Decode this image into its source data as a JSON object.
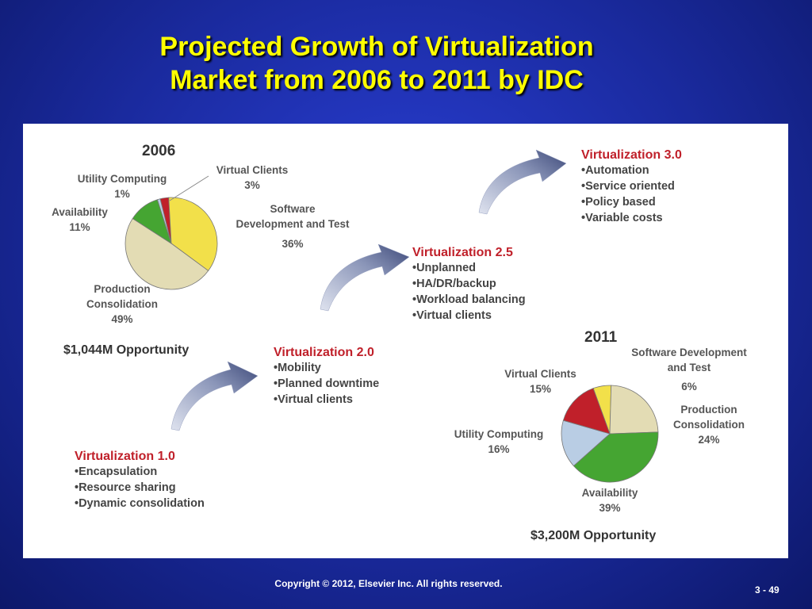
{
  "title_line1": "Projected Growth of Virtualization",
  "title_line2": "Market from 2006 to 2011 by IDC",
  "footer": "Copyright © 2012, Elsevier Inc. All rights reserved.",
  "page_number": "3 - 49",
  "chart_data": [
    {
      "type": "pie",
      "title": "2006",
      "subtitle": "$1,044M Opportunity",
      "slices": [
        {
          "label": "Virtual Clients",
          "value": 3,
          "value_label": "3%",
          "color": "#c0202a"
        },
        {
          "label": "Software Development and Test",
          "value": 36,
          "value_label": "36%",
          "color": "#f2e04a"
        },
        {
          "label": "Production Consolidation",
          "value": 49,
          "value_label": "49%",
          "color": "#e3dcb4"
        },
        {
          "label": "Availability",
          "value": 11,
          "value_label": "11%",
          "color": "#45a532"
        },
        {
          "label": "Utility Computing",
          "value": 1,
          "value_label": "1%",
          "color": "#b9cde4"
        }
      ]
    },
    {
      "type": "pie",
      "title": "2011",
      "subtitle": "$3,200M Opportunity",
      "slices": [
        {
          "label": "Software Development and Test",
          "value": 6,
          "value_label": "6%",
          "color": "#f2e04a"
        },
        {
          "label": "Production Consolidation",
          "value": 24,
          "value_label": "24%",
          "color": "#e3dcb4"
        },
        {
          "label": "Availability",
          "value": 39,
          "value_label": "39%",
          "color": "#45a532"
        },
        {
          "label": "Utility Computing",
          "value": 16,
          "value_label": "16%",
          "color": "#b9cde4"
        },
        {
          "label": "Virtual Clients",
          "value": 15,
          "value_label": "15%",
          "color": "#c0202a"
        }
      ]
    }
  ],
  "stages": [
    {
      "heading": "Virtualization 1.0",
      "items": [
        "Encapsulation",
        "Resource sharing",
        "Dynamic consolidation"
      ]
    },
    {
      "heading": "Virtualization 2.0",
      "items": [
        "Mobility",
        "Planned downtime",
        "Virtual clients"
      ]
    },
    {
      "heading": "Virtualization 2.5",
      "items": [
        "Unplanned",
        "HA/DR/backup",
        "Workload balancing",
        "Virtual clients"
      ]
    },
    {
      "heading": "Virtualization 3.0",
      "items": [
        "Automation",
        "Service oriented",
        "Policy based",
        "Variable costs"
      ]
    }
  ],
  "labels_2006": {
    "utility_1": "Utility Computing",
    "utility_2": "1%",
    "virtual_1": "Virtual Clients",
    "virtual_2": "3%",
    "avail_1": "Availability",
    "avail_2": "11%",
    "soft_1": "Software",
    "soft_2": "Development and Test",
    "soft_3": "36%",
    "prod_1": "Production",
    "prod_2": "Consolidation",
    "prod_3": "49%"
  },
  "labels_2011": {
    "soft_1": "Software Development",
    "soft_2": "and Test",
    "soft_3": "6%",
    "virtual_1": "Virtual Clients",
    "virtual_2": "15%",
    "prod_1": "Production",
    "prod_2": "Consolidation",
    "prod_3": "24%",
    "utility_1": "Utility Computing",
    "utility_2": "16%",
    "avail_1": "Availability",
    "avail_2": "39%"
  }
}
